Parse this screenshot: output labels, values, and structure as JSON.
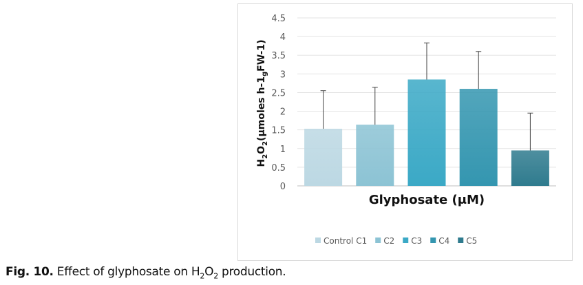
{
  "chart_data": {
    "type": "bar",
    "categories": [
      "Control C1",
      "C2",
      "C3",
      "C4",
      "C5"
    ],
    "values": [
      1.53,
      1.64,
      2.85,
      2.6,
      0.95
    ],
    "error_upper": [
      1.02,
      1.0,
      0.98,
      1.0,
      1.0
    ],
    "colors": [
      "#bcd8e3",
      "#8cc3d4",
      "#3ba9c6",
      "#3496b0",
      "#2f7b8e"
    ],
    "xlabel": "Glyphosate (μM)",
    "ylabel": "H2O2(μmoles h-1gFW-1)",
    "ylabel_parts": {
      "h": "H",
      "sub1": "2",
      "o": "O",
      "sub2": "2",
      "rest": "(μmoles h-1",
      "sub3": "g",
      "rest2": "FW-1)"
    },
    "ylim": [
      0,
      4.5
    ],
    "yticks": [
      "0",
      "0.5",
      "1",
      "1.5",
      "2",
      "2.5",
      "3",
      "3.5",
      "4",
      "4.5"
    ],
    "grid": true,
    "legend_position": "bottom"
  },
  "caption": {
    "label": "Fig. 10.",
    "text_a": " Effect of glyphosate on H",
    "sub1": "2",
    "text_b": "O",
    "sub2": "2",
    "text_c": " production."
  }
}
